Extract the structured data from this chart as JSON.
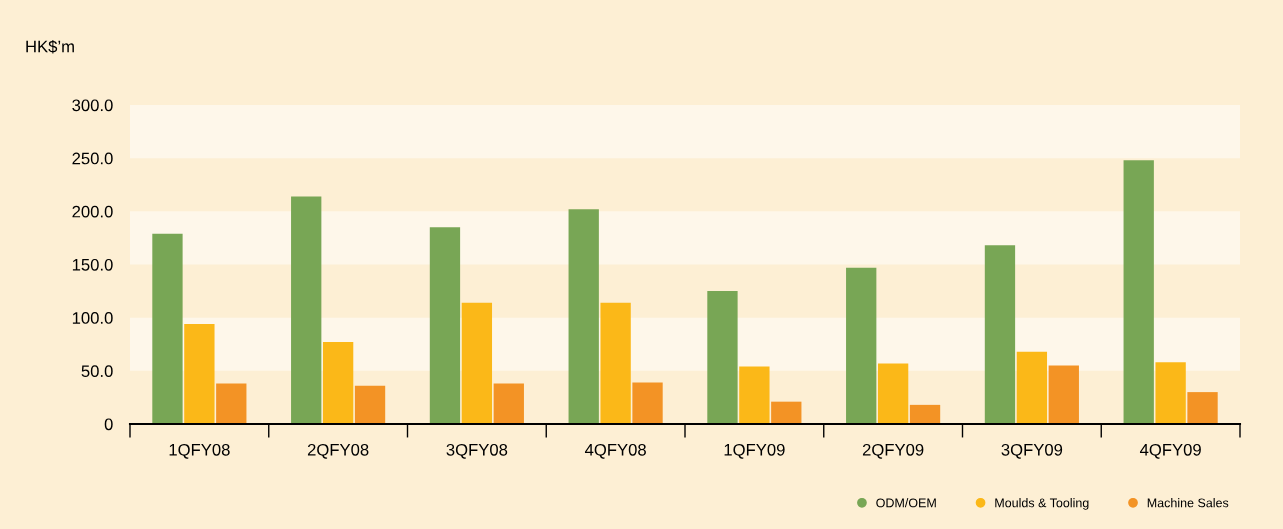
{
  "chart_data": {
    "type": "bar",
    "ylabel": "HK$’m",
    "categories": [
      "1QFY08",
      "2QFY08",
      "3QFY08",
      "4QFY08",
      "1QFY09",
      "2QFY09",
      "3QFY09",
      "4QFY09"
    ],
    "series": [
      {
        "name": "ODM/OEM",
        "color": "#78a655",
        "values": [
          179,
          214,
          185,
          202,
          125,
          147,
          168,
          248
        ]
      },
      {
        "name": "Moulds & Tooling",
        "color": "#fbb818",
        "values": [
          94,
          77,
          114,
          114,
          54,
          57,
          68,
          58
        ]
      },
      {
        "name": "Machine Sales",
        "color": "#f39325",
        "values": [
          38,
          36,
          38,
          39,
          21,
          18,
          55,
          30
        ]
      }
    ],
    "ylim": [
      0,
      300
    ],
    "yticks": [
      {
        "value": 0,
        "label": "0"
      },
      {
        "value": 50,
        "label": "50.0"
      },
      {
        "value": 100,
        "label": "100.0"
      },
      {
        "value": 150,
        "label": "150.0"
      },
      {
        "value": 200,
        "label": "200.0"
      },
      {
        "value": 250,
        "label": "250.0"
      },
      {
        "value": 300,
        "label": "300.0"
      }
    ],
    "legend": "bottom right",
    "marker": "circle"
  }
}
